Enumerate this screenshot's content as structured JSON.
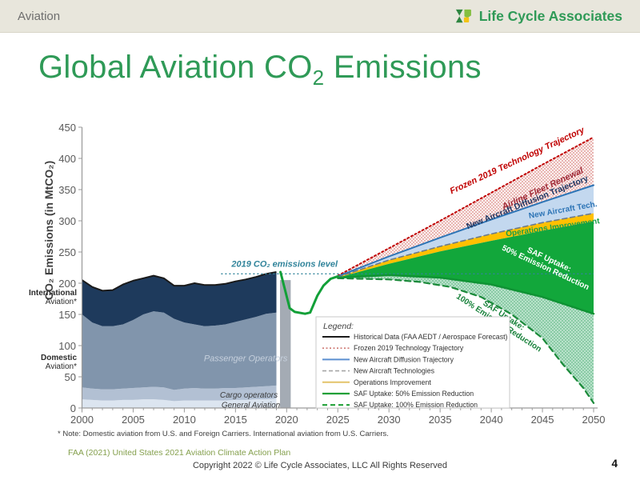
{
  "slide": {
    "breadcrumb": "Aviation",
    "brand": "Life Cycle Associates",
    "brand_icon": "lifecycle-logo-icon",
    "title": {
      "prefix": "Global Aviation CO",
      "sub": "2",
      "suffix": " Emissions"
    },
    "source": "FAA (2021) United States 2021 Aviation Climate Action Plan",
    "copyright": "Copyright 2022 © Life Cycle Associates, LLC All Rights Reserved",
    "page_number": "4",
    "colors": {
      "title_green": "#2f9a57",
      "header_bg": "#e8e6dc",
      "source_green": "#85a04e"
    }
  },
  "chart_data": {
    "type": "area",
    "title": "",
    "ylabel": "CO₂ Emissions (in MtCO₂)",
    "xlabel": "",
    "xlim": [
      2000,
      2050
    ],
    "ylim": [
      0,
      450
    ],
    "x_ticks": [
      2000,
      2005,
      2010,
      2015,
      2020,
      2025,
      2030,
      2035,
      2040,
      2045,
      2050
    ],
    "y_ticks": [
      0,
      50,
      100,
      150,
      200,
      250,
      300,
      350,
      400,
      450
    ],
    "note": "* Note: Domestic aviation from U.S. and Foreign Carriers. International aviation from U.S. Carriers.",
    "side_labels": [
      {
        "lines": [
          "International",
          "Aviation*"
        ],
        "value": 181
      },
      {
        "lines": [
          "Domestic",
          "Aviation*"
        ],
        "value": 77
      }
    ],
    "historical": {
      "years": [
        2000,
        2001,
        2002,
        2003,
        2004,
        2005,
        2006,
        2007,
        2008,
        2009,
        2010,
        2011,
        2012,
        2013,
        2014,
        2015,
        2016,
        2017,
        2018,
        2019
      ],
      "layers": [
        {
          "name": "General Aviation",
          "color": "#dce5f0",
          "top": [
            14,
            13,
            12,
            12,
            13,
            13,
            14,
            14,
            13,
            11,
            12,
            12,
            12,
            12,
            12,
            13,
            13,
            14,
            14,
            15
          ]
        },
        {
          "name": "Cargo operators",
          "color": "#b2c0d3",
          "top": [
            33,
            31,
            30,
            30,
            31,
            32,
            33,
            34,
            33,
            29,
            31,
            32,
            31,
            31,
            32,
            32,
            33,
            34,
            35,
            36
          ]
        },
        {
          "name": "Passenger Operators",
          "color": "#8195ac",
          "top": [
            150,
            137,
            131,
            131,
            134,
            141,
            150,
            155,
            153,
            143,
            137,
            134,
            131,
            132,
            134,
            138,
            142,
            146,
            151,
            153
          ]
        },
        {
          "name": "International Aviation",
          "color": "#1e3a5c",
          "top": [
            205,
            194,
            188,
            189,
            198,
            204,
            208,
            212,
            208,
            196,
            196,
            200,
            197,
            197,
            199,
            203,
            206,
            210,
            215,
            218
          ]
        }
      ],
      "outline_color": "#1a1a1a",
      "covid_strip": {
        "x0": 2019.35,
        "x1": 2020.4,
        "top": 205,
        "color": "#a4abb4"
      }
    },
    "actual_line": {
      "name": "Historical / forecast emissions with COVID dip",
      "color": "#12a038",
      "points": [
        [
          2019.4,
          218
        ],
        [
          2020.3,
          160
        ],
        [
          2020.8,
          154
        ],
        [
          2021.8,
          151
        ],
        [
          2022.3,
          153
        ],
        [
          2023.0,
          180
        ],
        [
          2023.6,
          196
        ],
        [
          2024.3,
          207
        ],
        [
          2025,
          211
        ]
      ]
    },
    "reference_line": {
      "label": "2019 CO₂ emissions level",
      "value": 215,
      "x_start": 2013.6,
      "x_end": 2050,
      "color": "#31849b"
    },
    "projections": [
      {
        "name": "Frozen 2019 Technology Trajectory",
        "points": [
          [
            2025,
            212
          ],
          [
            2030,
            256
          ],
          [
            2035,
            300
          ],
          [
            2040,
            345
          ],
          [
            2045,
            390
          ],
          [
            2050,
            434
          ]
        ],
        "line": {
          "color": "#c00000",
          "dash": "2 3.2",
          "width": 2
        }
      },
      {
        "name": "New Aircraft Diffusion Trajectory",
        "points": [
          [
            2025,
            211
          ],
          [
            2030,
            243
          ],
          [
            2035,
            273
          ],
          [
            2040,
            302
          ],
          [
            2045,
            330
          ],
          [
            2050,
            357
          ]
        ],
        "line": {
          "color": "#2e75b6",
          "width": 2
        }
      },
      {
        "name": "New Aircraft Technologies",
        "points": [
          [
            2025,
            210
          ],
          [
            2030,
            237
          ],
          [
            2035,
            259
          ],
          [
            2040,
            279
          ],
          [
            2045,
            297
          ],
          [
            2050,
            312
          ]
        ],
        "line": {
          "color": "#6b7b8c",
          "dash": "6 4",
          "width": 1.6
        }
      },
      {
        "name": "Operations Improvement",
        "points": [
          [
            2025,
            209
          ],
          [
            2030,
            231
          ],
          [
            2035,
            251
          ],
          [
            2040,
            268
          ],
          [
            2045,
            284
          ],
          [
            2050,
            299
          ]
        ],
        "line": null
      },
      {
        "name": "SAF Uptake: 50% Emission Reduction",
        "points": [
          [
            2025,
            209
          ],
          [
            2030,
            213
          ],
          [
            2035,
            209
          ],
          [
            2040,
            198
          ],
          [
            2045,
            178
          ],
          [
            2050,
            151
          ]
        ],
        "line": {
          "color": "#0f9334",
          "width": 2.5
        }
      },
      {
        "name": "SAF Uptake: 100% Emission Reduction",
        "points": [
          [
            2025,
            208
          ],
          [
            2030,
            206
          ],
          [
            2033,
            202
          ],
          [
            2036,
            194
          ],
          [
            2039,
            178
          ],
          [
            2042,
            150
          ],
          [
            2045,
            112
          ],
          [
            2047,
            70
          ],
          [
            2049,
            32
          ],
          [
            2050,
            8
          ]
        ],
        "line": {
          "color": "#1b8a3a",
          "dash": "7 5",
          "width": 2.2
        }
      }
    ],
    "bands": [
      {
        "name": "Airline Fleet Renewal",
        "top": "Frozen 2019 Technology Trajectory",
        "bottom": "New Aircraft Diffusion Trajectory",
        "fill": "redHatch"
      },
      {
        "name": "New Aircraft Tech band",
        "top": "New Aircraft Diffusion Trajectory",
        "bottom": "New Aircraft Technologies",
        "fill": "#c3d8ef"
      },
      {
        "name": "Operations Improvement band",
        "top": "New Aircraft Technologies",
        "bottom": "Operations Improvement",
        "fill": "#ffc000"
      },
      {
        "name": "SAF 50 band",
        "top": "Operations Improvement",
        "bottom": "SAF Uptake: 50% Emission Reduction",
        "fill": "#12a73b"
      },
      {
        "name": "SAF 100 band",
        "top": "SAF Uptake: 50% Emission Reduction",
        "bottom": "SAF Uptake: 100% Emission Reduction",
        "fill": "greenHatch"
      }
    ],
    "annotations": [
      {
        "lines": [
          "Frozen 2019 Technology Trajectory"
        ],
        "year": 2042.5,
        "value": 397,
        "angle": -25,
        "color": "#c00000",
        "size": 11,
        "bold": true,
        "italic": true
      },
      {
        "lines": [
          "Airline Fleet Renewal"
        ],
        "year": 2045,
        "value": 352,
        "angle": -25,
        "color": "#9f2936",
        "size": 11,
        "bold": true,
        "italic": true
      },
      {
        "lines": [
          "New Aircraft Diffusion Trajectory"
        ],
        "year": 2043.5,
        "value": 330,
        "angle": -22,
        "color": "#1f3864",
        "size": 10.5,
        "bold": true
      },
      {
        "lines": [
          "New Aircraft Tech."
        ],
        "year": 2047,
        "value": 318,
        "angle": -10,
        "color": "#2e75b6",
        "size": 10,
        "bold": true
      },
      {
        "lines": [
          "Operations Improvement"
        ],
        "year": 2046,
        "value": 290,
        "angle": -8,
        "color": "#17a048",
        "size": 10,
        "bold": true
      },
      {
        "lines": [
          "SAF Uptake:",
          "50% Emission Reduction"
        ],
        "year": 2045.5,
        "value": 232,
        "angle": 25,
        "color": "#ffffff",
        "size": 10,
        "bold": true
      },
      {
        "lines": [
          "SAF Uptake:",
          "100% Emission Reduction"
        ],
        "year": 2041,
        "value": 143,
        "angle": 33,
        "color": "#17813a",
        "size": 10,
        "bold": true
      },
      {
        "lines": [
          "2019 CO₂ emissions level"
        ],
        "year": 2019.8,
        "value": 231,
        "angle": 0,
        "color": "#31849b",
        "size": 11,
        "bold": true,
        "italic": true
      },
      {
        "lines": [
          "Passenger Operators"
        ],
        "year": 2016,
        "value": 80,
        "angle": 0,
        "color": "#c6d0dd",
        "size": 11,
        "italic": true
      },
      {
        "lines": [
          "Cargo operators"
        ],
        "year": 2016.3,
        "value": 21,
        "angle": 0,
        "color": "#3b3b3b",
        "size": 10,
        "italic": true
      },
      {
        "lines": [
          "General Aviation"
        ],
        "year": 2016.5,
        "value": 5,
        "angle": 0,
        "color": "#3b3b3b",
        "size": 10,
        "italic": true
      }
    ],
    "legend": {
      "title": "Legend:",
      "position": "bottom-center",
      "items": [
        {
          "label": "Historical Data (FAA AEDT / Aerospace Forecast)",
          "color": "#1a1a1a",
          "width": 2
        },
        {
          "label": "Frozen 2019 Technology Trajectory",
          "color": "#cf7a74",
          "dash": "2 2.5",
          "width": 1.6
        },
        {
          "label": "New Aircraft Diffusion Trajectory",
          "color": "#5b8fd0",
          "width": 2
        },
        {
          "label": "New Aircraft Technologies",
          "color": "#a6a6a6",
          "dash": "5 3",
          "width": 1.6
        },
        {
          "label": "Operations Improvement",
          "color": "#e4c36a",
          "width": 2
        },
        {
          "label": "SAF Uptake: 50% Emission Reduction",
          "color": "#21a038",
          "width": 2.2
        },
        {
          "label": "SAF Uptake: 100% Emission Reduction",
          "color": "#21a038",
          "dash": "6 4",
          "width": 2.2
        }
      ]
    }
  }
}
